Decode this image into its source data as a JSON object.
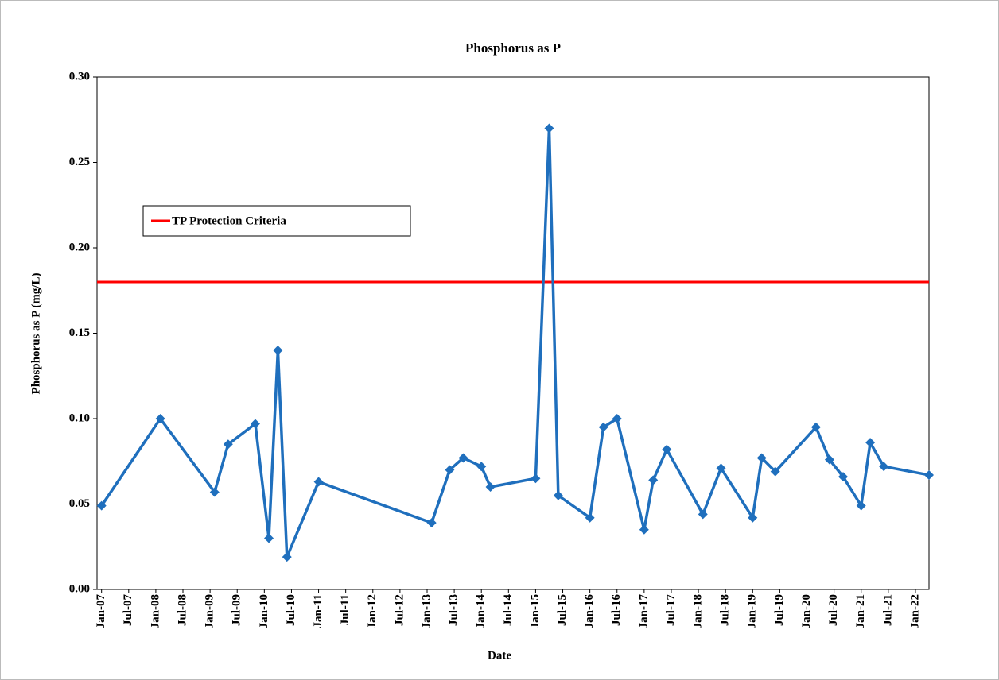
{
  "chart_data": {
    "type": "line",
    "title": "Phosphorus as P",
    "x_label": "Date",
    "y_label": "Phosphorus as P (mg/L)",
    "x": [
      "2007-01",
      "2008-02",
      "2009-02",
      "2009-05",
      "2009-11",
      "2010-02",
      "2010-04",
      "2010-06",
      "2011-01",
      "2013-02",
      "2013-06",
      "2013-09",
      "2014-01",
      "2014-03",
      "2015-01",
      "2015-04",
      "2015-06",
      "2016-01",
      "2016-04",
      "2016-07",
      "2017-01",
      "2017-03",
      "2017-06",
      "2018-02",
      "2018-06",
      "2019-01",
      "2019-03",
      "2019-06",
      "2020-03",
      "2020-06",
      "2020-09",
      "2021-01",
      "2021-03",
      "2021-06",
      "2022-04"
    ],
    "series": [
      {
        "name": "Phosphorus as P",
        "color": "#1f6fbd",
        "values": [
          0.049,
          0.1,
          0.057,
          0.085,
          0.097,
          0.03,
          0.14,
          0.019,
          0.063,
          0.039,
          0.07,
          0.077,
          0.072,
          0.06,
          0.065,
          0.27,
          0.055,
          0.042,
          0.095,
          0.1,
          0.035,
          0.064,
          0.082,
          0.044,
          0.071,
          0.042,
          0.077,
          0.069,
          0.095,
          0.076,
          0.066,
          0.049,
          0.086,
          0.072,
          0.067
        ]
      }
    ],
    "reference_lines": [
      {
        "name": "TP Protection Criteria",
        "value": 0.18,
        "color": "#ff0000"
      }
    ],
    "legend": "upper left",
    "xlim": [
      "2006-12",
      "2022-04"
    ],
    "xticks": [
      {
        "value": "2007-01",
        "label": "Jan-07"
      },
      {
        "value": "2007-07",
        "label": "Jul-07"
      },
      {
        "value": "2008-01",
        "label": "Jan-08"
      },
      {
        "value": "2008-07",
        "label": "Jul-08"
      },
      {
        "value": "2009-01",
        "label": "Jan-09"
      },
      {
        "value": "2009-07",
        "label": "Jul-09"
      },
      {
        "value": "2010-01",
        "label": "Jan-10"
      },
      {
        "value": "2010-07",
        "label": "Jul-10"
      },
      {
        "value": "2011-01",
        "label": "Jan-11"
      },
      {
        "value": "2011-07",
        "label": "Jul-11"
      },
      {
        "value": "2012-01",
        "label": "Jan-12"
      },
      {
        "value": "2012-07",
        "label": "Jul-12"
      },
      {
        "value": "2013-01",
        "label": "Jan-13"
      },
      {
        "value": "2013-07",
        "label": "Jul-13"
      },
      {
        "value": "2014-01",
        "label": "Jan-14"
      },
      {
        "value": "2014-07",
        "label": "Jul-14"
      },
      {
        "value": "2015-01",
        "label": "Jan-15"
      },
      {
        "value": "2015-07",
        "label": "Jul-15"
      },
      {
        "value": "2016-01",
        "label": "Jan-16"
      },
      {
        "value": "2016-07",
        "label": "Jul-16"
      },
      {
        "value": "2017-01",
        "label": "Jan-17"
      },
      {
        "value": "2017-07",
        "label": "Jul-17"
      },
      {
        "value": "2018-01",
        "label": "Jan-18"
      },
      {
        "value": "2018-07",
        "label": "Jul-18"
      },
      {
        "value": "2019-01",
        "label": "Jan-19"
      },
      {
        "value": "2019-07",
        "label": "Jul-19"
      },
      {
        "value": "2020-01",
        "label": "Jan-20"
      },
      {
        "value": "2020-07",
        "label": "Jul-20"
      },
      {
        "value": "2021-01",
        "label": "Jan-21"
      },
      {
        "value": "2021-07",
        "label": "Jul-21"
      },
      {
        "value": "2022-01",
        "label": "Jan-22"
      }
    ],
    "ylim": [
      0,
      0.3
    ],
    "yticks": [
      {
        "value": 0,
        "label": "0.00"
      },
      {
        "value": 0.05,
        "label": "0.05"
      },
      {
        "value": 0.1,
        "label": "0.10"
      },
      {
        "value": 0.15,
        "label": "0.15"
      },
      {
        "value": 0.2,
        "label": "0.20"
      },
      {
        "value": 0.25,
        "label": "0.25"
      },
      {
        "value": 0.3,
        "label": "0.30"
      }
    ]
  }
}
